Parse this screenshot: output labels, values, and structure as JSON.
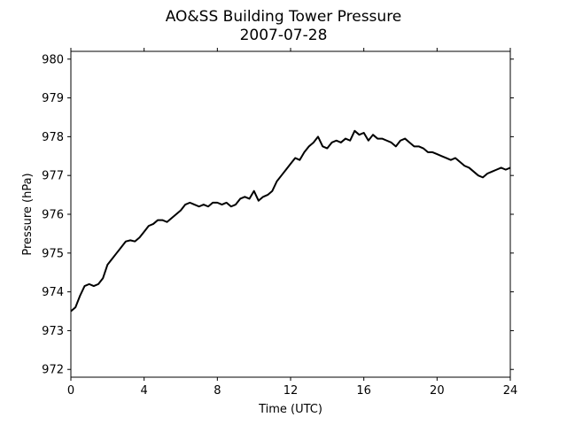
{
  "chart_data": {
    "type": "line",
    "title": "AO&SS Building Tower Pressure",
    "subtitle": "2007-07-28",
    "xlabel": "Time (UTC)",
    "ylabel": "Pressure (hPa)",
    "xlim": [
      0,
      24
    ],
    "ylim": [
      971.8,
      980.2
    ],
    "xticks": [
      0,
      4,
      8,
      12,
      16,
      20,
      24
    ],
    "yticks": [
      972,
      973,
      974,
      975,
      976,
      977,
      978,
      979,
      980
    ],
    "grid": false,
    "line_color": "#000000",
    "series": [
      {
        "x": [
          0,
          0.25,
          0.5,
          0.75,
          1.0,
          1.25,
          1.5,
          1.75,
          2.0,
          2.25,
          2.5,
          2.75,
          3.0,
          3.25,
          3.5,
          3.75,
          4.0,
          4.25,
          4.5,
          4.75,
          5.0,
          5.25,
          5.5,
          5.75,
          6.0,
          6.25,
          6.5,
          6.75,
          7.0,
          7.25,
          7.5,
          7.75,
          8.0,
          8.25,
          8.5,
          8.75,
          9.0,
          9.25,
          9.5,
          9.75,
          10.0,
          10.25,
          10.5,
          10.75,
          11.0,
          11.25,
          11.5,
          11.75,
          12.0,
          12.25,
          12.5,
          12.75,
          13.0,
          13.25,
          13.5,
          13.75,
          14.0,
          14.25,
          14.5,
          14.75,
          15.0,
          15.25,
          15.5,
          15.75,
          16.0,
          16.25,
          16.5,
          16.75,
          17.0,
          17.25,
          17.5,
          17.75,
          18.0,
          18.25,
          18.5,
          18.75,
          19.0,
          19.25,
          19.5,
          19.75,
          20.0,
          20.25,
          20.5,
          20.75,
          21.0,
          21.25,
          21.5,
          21.75,
          22.0,
          22.25,
          22.5,
          22.75,
          23.0,
          23.25,
          23.5,
          23.75,
          24.0
        ],
        "values": [
          973.5,
          973.6,
          973.9,
          974.15,
          974.2,
          974.15,
          974.2,
          974.35,
          974.7,
          974.85,
          975.0,
          975.15,
          975.3,
          975.33,
          975.3,
          975.4,
          975.55,
          975.7,
          975.75,
          975.85,
          975.85,
          975.8,
          975.9,
          976.0,
          976.1,
          976.25,
          976.3,
          976.25,
          976.2,
          976.25,
          976.2,
          976.3,
          976.3,
          976.25,
          976.3,
          976.2,
          976.25,
          976.4,
          976.45,
          976.4,
          976.6,
          976.35,
          976.45,
          976.5,
          976.6,
          976.85,
          977.0,
          977.15,
          977.3,
          977.45,
          977.4,
          977.6,
          977.75,
          977.85,
          978.0,
          977.75,
          977.7,
          977.85,
          977.9,
          977.85,
          977.95,
          977.9,
          978.15,
          978.05,
          978.1,
          977.9,
          978.05,
          977.95,
          977.95,
          977.9,
          977.85,
          977.75,
          977.9,
          977.95,
          977.85,
          977.75,
          977.75,
          977.7,
          977.6,
          977.6,
          977.55,
          977.5,
          977.45,
          977.4,
          977.45,
          977.35,
          977.25,
          977.2,
          977.1,
          977.0,
          976.95,
          977.05,
          977.1,
          977.15,
          977.2,
          977.15,
          977.2
        ]
      }
    ]
  }
}
